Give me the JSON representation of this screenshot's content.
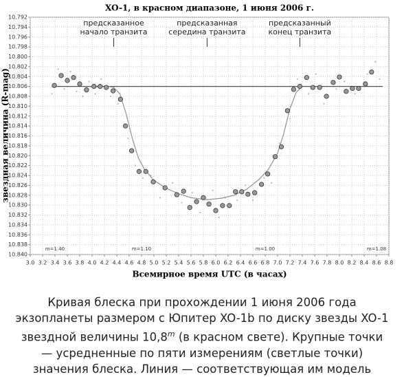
{
  "chart_data": {
    "type": "scatter",
    "title": "XO-1, в красном диапазоне, 1 июня 2006 г.",
    "x_label": "Всемирное время UTC (в часах)",
    "y_label": "звездная величина (R-mag)",
    "xlim": [
      3.0,
      8.8
    ],
    "ylim": [
      10.792,
      10.84
    ],
    "y_inverted": true,
    "grid": true,
    "xticks": [
      {
        "value": 3.0,
        "label": "3.0"
      },
      {
        "value": 3.2,
        "label": "3.2"
      },
      {
        "value": 3.4,
        "label": "3.4"
      },
      {
        "value": 3.6,
        "label": "3.6"
      },
      {
        "value": 3.8,
        "label": "3.8"
      },
      {
        "value": 4.0,
        "label": "4.0"
      },
      {
        "value": 4.2,
        "label": "4.2"
      },
      {
        "value": 4.4,
        "label": "4.4"
      },
      {
        "value": 4.6,
        "label": "4.6"
      },
      {
        "value": 4.8,
        "label": "4.8"
      },
      {
        "value": 5.0,
        "label": "5.0"
      },
      {
        "value": 5.2,
        "label": "5.2"
      },
      {
        "value": 5.4,
        "label": "5.4"
      },
      {
        "value": 5.6,
        "label": "5.6"
      },
      {
        "value": 5.8,
        "label": "5.8"
      },
      {
        "value": 6.0,
        "label": "6.0"
      },
      {
        "value": 6.2,
        "label": "6.2"
      },
      {
        "value": 6.4,
        "label": "6.4"
      },
      {
        "value": 6.6,
        "label": "6.6"
      },
      {
        "value": 6.8,
        "label": "6.8"
      },
      {
        "value": 7.0,
        "label": "7.0"
      },
      {
        "value": 7.2,
        "label": "7.2"
      },
      {
        "value": 7.4,
        "label": "7.4"
      },
      {
        "value": 7.6,
        "label": "7.6"
      },
      {
        "value": 7.8,
        "label": "7.8"
      },
      {
        "value": 8.0,
        "label": "8.0"
      },
      {
        "value": 8.2,
        "label": "8.2"
      },
      {
        "value": 8.4,
        "label": "8.4"
      },
      {
        "value": 8.6,
        "label": "8.6"
      },
      {
        "value": 8.8,
        "label": "8.8"
      }
    ],
    "yticks": [
      10.792,
      10.794,
      10.796,
      10.798,
      {
        "value": 10.8,
        "label": "10.800"
      },
      10.802,
      10.804,
      10.806,
      10.808,
      {
        "value": 10.81,
        "label": "10.810"
      },
      10.812,
      10.814,
      10.816,
      10.818,
      {
        "value": 10.82,
        "label": "10.820"
      },
      10.822,
      10.824,
      10.826,
      10.828,
      {
        "value": 10.83,
        "label": "10.830"
      },
      10.832,
      10.834,
      10.836,
      10.838,
      {
        "value": 10.84,
        "label": "10.840"
      }
    ],
    "baseline": {
      "value": 10.806,
      "x": [
        3.35,
        8.7
      ],
      "color": "#555555"
    },
    "model": {
      "color": "#999999",
      "x": [
        4.25,
        4.35,
        4.45,
        4.55,
        4.65,
        4.75,
        4.85,
        5.0,
        5.2,
        5.4,
        5.6,
        5.86,
        6.1,
        6.3,
        6.5,
        6.7,
        6.85,
        7.0,
        7.1,
        7.2,
        7.3,
        7.4
      ],
      "values": [
        10.806,
        10.8062,
        10.8075,
        10.8115,
        10.8165,
        10.8205,
        10.8228,
        10.825,
        10.8266,
        10.8277,
        10.8285,
        10.8289,
        10.8286,
        10.828,
        10.8268,
        10.8248,
        10.8228,
        10.8195,
        10.8155,
        10.8105,
        10.8072,
        10.806
      ]
    },
    "series": [
      {
        "name": "averaged",
        "color": "#999999",
        "x": [
          3.39,
          3.5,
          3.6,
          3.7,
          3.8,
          3.91,
          4.03,
          4.13,
          4.23,
          4.34,
          4.46,
          4.54,
          4.64,
          4.76,
          4.87,
          4.99,
          5.18,
          5.37,
          5.48,
          5.58,
          5.69,
          5.8,
          5.89,
          6.0,
          6.11,
          6.22,
          6.32,
          6.42,
          6.52,
          6.63,
          6.74,
          6.84,
          6.96,
          7.06,
          7.16,
          7.26,
          7.36,
          7.47,
          7.57,
          7.68,
          7.79,
          7.9,
          8.0,
          8.11,
          8.21,
          8.31,
          8.42,
          8.52
        ],
        "values": [
          10.8058,
          10.8038,
          10.8048,
          10.8042,
          10.8055,
          10.8067,
          10.806,
          10.806,
          10.8062,
          10.8069,
          10.8086,
          10.814,
          10.819,
          10.8232,
          10.8232,
          10.8253,
          10.8265,
          10.8279,
          10.8272,
          10.8305,
          10.8293,
          10.8285,
          10.8298,
          10.8311,
          10.8301,
          10.8301,
          10.8273,
          10.8273,
          10.8278,
          10.8275,
          10.8258,
          10.8237,
          10.8202,
          10.8182,
          10.8109,
          10.8066,
          10.806,
          10.8042,
          10.8062,
          10.8062,
          10.808,
          10.8052,
          10.8041,
          10.807,
          10.8064,
          10.8064,
          10.8055,
          10.8031
        ]
      },
      {
        "name": "raw",
        "color": "#bbbbbb",
        "x": [
          3.35,
          3.45,
          3.55,
          3.65,
          3.75,
          3.85,
          3.95,
          4.05,
          4.15,
          4.3,
          4.42,
          4.58,
          4.7,
          4.82,
          4.95,
          5.1,
          5.3,
          5.45,
          5.62,
          5.75,
          5.95,
          6.05,
          6.15,
          6.35,
          6.48,
          6.6,
          6.78,
          6.9,
          7.03,
          7.2,
          7.32,
          7.5,
          7.62,
          7.75,
          7.95,
          8.08,
          8.25,
          8.45,
          8.58,
          8.65
        ],
        "values": [
          10.8075,
          10.8025,
          10.8065,
          10.803,
          10.807,
          10.808,
          10.805,
          10.8075,
          10.8045,
          10.808,
          10.8095,
          10.8165,
          10.822,
          10.8245,
          10.824,
          10.8285,
          10.8255,
          10.8295,
          10.8275,
          10.8315,
          10.827,
          10.8325,
          10.8285,
          10.829,
          10.826,
          10.829,
          10.8245,
          10.8255,
          10.8175,
          10.8125,
          10.8045,
          10.8075,
          10.8035,
          10.8095,
          10.8065,
          10.805,
          10.8075,
          10.8035,
          10.801,
          10.8045
        ]
      }
    ],
    "annotations": [
      {
        "lines": [
          "предсказанное",
          "начало транзита"
        ],
        "x": 4.35
      },
      {
        "lines": [
          "предсказанная",
          "середина транзита"
        ],
        "x": 5.86
      },
      {
        "lines": [
          "предсказанный",
          "конец транзита"
        ],
        "x": 7.36
      }
    ],
    "airmass": [
      {
        "label": "m=1.40",
        "x": 3.4
      },
      {
        "label": "m=1.10",
        "x": 4.8
      },
      {
        "label": "m=1.00",
        "x": 6.8
      },
      {
        "label": "m=1.08",
        "x": 8.6
      }
    ]
  },
  "caption": {
    "before": "Кривая блеска при прохождении 1 июня 2006 года экзопланеты размером с Юпитер XO-1b по диску звезды XO-1 звездной величины 10,8",
    "sup": "m",
    "after": " (в красном свете). Крупные точки — усредненные по пяти измерениям (светлые точки) значения блеска. Линия — соответствующая им модель"
  }
}
